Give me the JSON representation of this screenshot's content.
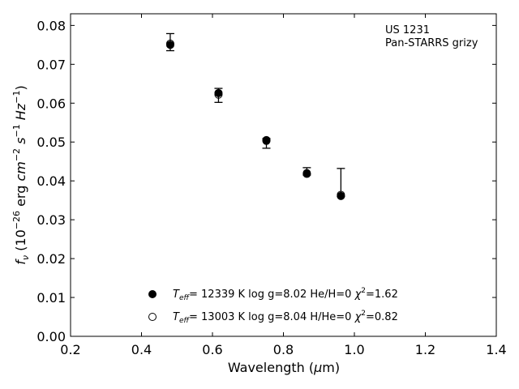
{
  "chart_data": {
    "type": "scatter",
    "xlabel": "Wavelength (μm)",
    "ylabel": "f_ν (10^-26 erg cm^-2 s^-1 Hz^-1)",
    "xlim": [
      0.2,
      1.4
    ],
    "ylim": [
      0.0,
      0.083
    ],
    "xticks": [
      "0.2",
      "0.4",
      "0.6",
      "0.8",
      "1.0",
      "1.2",
      "1.4"
    ],
    "xtick_values": [
      0.2,
      0.4,
      0.6,
      0.8,
      1.0,
      1.2,
      1.4
    ],
    "yticks": [
      "0.00",
      "0.01",
      "0.02",
      "0.03",
      "0.04",
      "0.05",
      "0.06",
      "0.07",
      "0.08"
    ],
    "ytick_values": [
      0.0,
      0.01,
      0.02,
      0.03,
      0.04,
      0.05,
      0.06,
      0.07,
      0.08
    ],
    "annotation": [
      "US 1231",
      "Pan-STARRS grizy"
    ],
    "observed": {
      "x": [
        0.481,
        0.617,
        0.752,
        0.866,
        0.962
      ],
      "y": [
        0.0757,
        0.062,
        0.0498,
        0.0425,
        0.036
      ],
      "yerr_low": [
        0.0022,
        0.0018,
        0.0014,
        0.001,
        0.0
      ],
      "yerr_high": [
        0.0022,
        0.0018,
        0.0011,
        0.0009,
        0.0072
      ]
    },
    "series": [
      {
        "name": "T_eff= 12339 K  log g=8.02  He/H=0  χ²=1.62",
        "marker": "filled",
        "x": [
          0.481,
          0.617,
          0.752,
          0.866,
          0.962
        ],
        "y": [
          0.075,
          0.0626,
          0.0505,
          0.0418,
          0.0361
        ]
      },
      {
        "name": "T_eff= 13003 K  log g=8.04  H/He=0  χ²=0.82",
        "marker": "open",
        "x": [
          0.481,
          0.617,
          0.752,
          0.866,
          0.962
        ],
        "y": [
          0.0753,
          0.0622,
          0.0503,
          0.042,
          0.0364
        ]
      }
    ]
  }
}
